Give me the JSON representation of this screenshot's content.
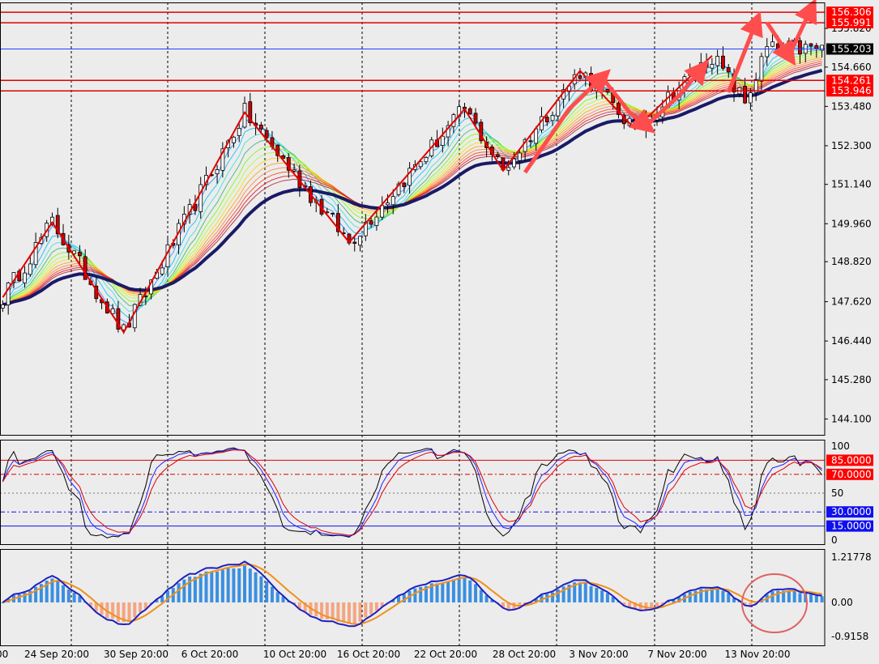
{
  "colors": {
    "background": "#ececec",
    "frame": "#000000",
    "bull_candle": "#000000",
    "bear_candle": "#cc0000",
    "ma_thick": "#1a1a66",
    "zigzag": "#e00000",
    "arrows": "#ff4d4d",
    "level_line": "#e00000",
    "blue_line": "#1f3fff",
    "histogram_pos": "#3a8fe0",
    "histogram_neg": "#f4a582",
    "macd_line": "#1f1fbf",
    "signal_line": "#f0901a",
    "highlight_circle": "#e06060",
    "label_red_bg": "#ff0000",
    "label_dark_bg": "#000000",
    "label_blue_bg": "#1010ee"
  },
  "chart_data": [
    {
      "type": "candlestick",
      "title": "",
      "yticks": [
        "155.820",
        "154.660",
        "153.480",
        "152.300",
        "151.140",
        "149.960",
        "148.820",
        "147.620",
        "146.440",
        "145.280",
        "144.100"
      ],
      "ylim": [
        143.6,
        156.6
      ],
      "price_levels": [
        {
          "value": 156.306,
          "label": "156.306",
          "color": "red"
        },
        {
          "value": 155.991,
          "label": "155.991",
          "color": "red"
        },
        {
          "value": 155.203,
          "label": "155.203",
          "color": "dark"
        },
        {
          "value": 154.261,
          "label": "154.261",
          "color": "red"
        },
        {
          "value": 153.946,
          "label": "153.946",
          "color": "red"
        }
      ],
      "zigzag_points": [
        [
          0,
          147.75
        ],
        [
          9,
          150.0
        ],
        [
          22,
          146.7
        ],
        [
          44,
          153.3
        ],
        [
          63,
          149.4
        ],
        [
          84,
          153.4
        ],
        [
          91,
          151.55
        ],
        [
          105,
          154.55
        ],
        [
          115,
          152.8
        ],
        [
          129,
          155.0
        ],
        [
          135,
          153.6
        ],
        [
          139,
          155.2
        ]
      ],
      "projection_arrows": [
        [
          [
            95,
            151.5
          ],
          [
            103,
            153.4
          ],
          [
            109,
            154.35
          ]
        ],
        [
          [
            109,
            154.35
          ],
          [
            114,
            153.3
          ],
          [
            117,
            152.9
          ]
        ],
        [
          [
            117,
            152.9
          ],
          [
            123,
            153.8
          ],
          [
            127,
            154.6
          ]
        ],
        [
          [
            132,
            153.9
          ],
          [
            137,
            156.0
          ]
        ],
        [
          [
            139,
            156.0
          ],
          [
            143,
            155.0
          ]
        ],
        [
          [
            143,
            155.0
          ],
          [
            147,
            156.4
          ]
        ]
      ]
    },
    {
      "type": "line",
      "yticks": [
        "100",
        "50",
        "0"
      ],
      "ylim": [
        0,
        100
      ],
      "levels": [
        {
          "value": 85,
          "label": "85.0000",
          "color": "red",
          "style": "solid"
        },
        {
          "value": 70,
          "label": "70.0000",
          "color": "red",
          "style": "dashdot"
        },
        {
          "value": 30,
          "label": "30.0000",
          "color": "blue",
          "style": "dashdot"
        },
        {
          "value": 15,
          "label": "15.0000",
          "color": "blue",
          "style": "solid"
        }
      ]
    },
    {
      "type": "bar",
      "yticks": [
        "1.21778",
        "0.00",
        "-0.9158"
      ],
      "ylim": [
        -0.9158,
        1.21778
      ]
    }
  ],
  "xaxis": {
    "labels": [
      "00",
      "24 Sep 20:00",
      "30 Sep 20:00",
      "6 Oct 20:00",
      "10 Oct 20:00",
      "16 Oct 20:00",
      "22 Oct 20:00",
      "28 Oct 20:00",
      "3 Nov 20:00",
      "7 Nov 20:00",
      "13 Nov 20:00"
    ]
  }
}
